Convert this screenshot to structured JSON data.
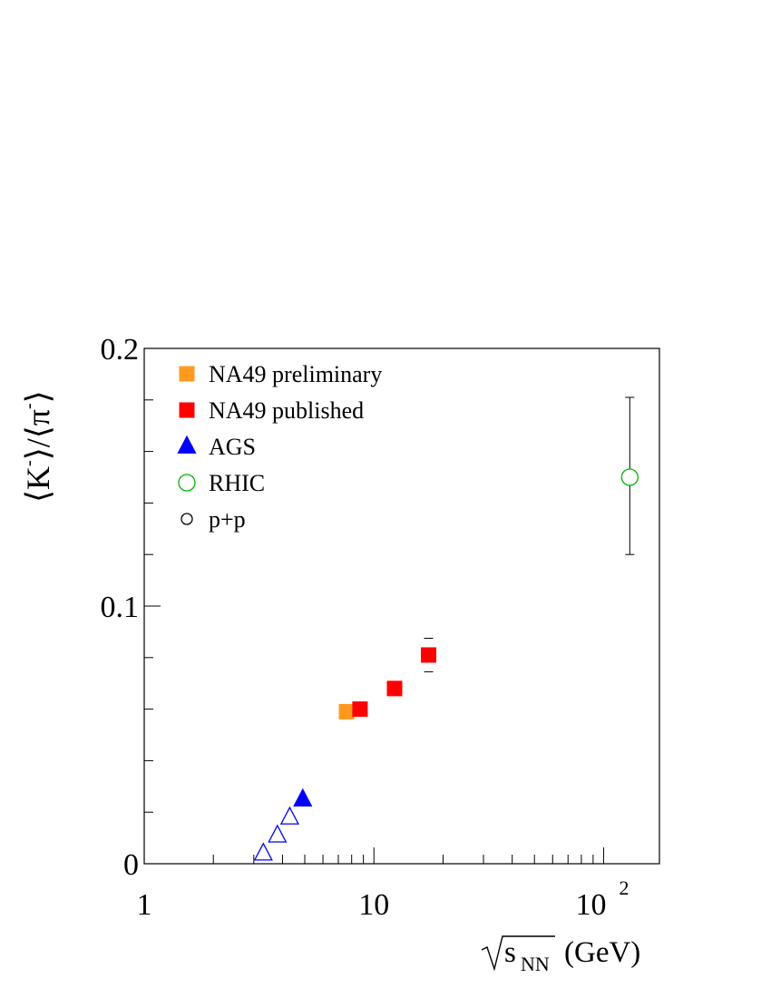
{
  "chart_data": {
    "type": "scatter",
    "x_scale": "log",
    "xlim": [
      1,
      175
    ],
    "ylim": [
      0,
      0.2
    ],
    "grid": false,
    "legend_position": "top-left",
    "x_tick_labels": [
      {
        "value": 1,
        "base": "1",
        "exp": ""
      },
      {
        "value": 10,
        "base": "10",
        "exp": ""
      },
      {
        "value": 100,
        "base": "10",
        "exp": "2"
      }
    ],
    "y_tick_labels": [
      {
        "value": 0,
        "label": "0"
      },
      {
        "value": 0.1,
        "label": "0.1"
      },
      {
        "value": 0.2,
        "label": "0.2"
      }
    ],
    "xlabel": {
      "sub": "NN",
      "unit": "(GeV)"
    },
    "ylabel": {
      "k": "K",
      "pi": "π",
      "charge": "-"
    },
    "legend": [
      {
        "label": "NA49 preliminary",
        "marker": "square-filled",
        "color": "#ff9a1f"
      },
      {
        "label": "NA49 published",
        "marker": "square-filled",
        "color": "#ff0000"
      },
      {
        "label": "AGS",
        "marker": "triangle-filled",
        "color": "#0000ff"
      },
      {
        "label": "RHIC",
        "marker": "circle-open",
        "color": "#00b400"
      },
      {
        "label": "p+p",
        "marker": "circle-open",
        "color": "#000000"
      }
    ],
    "series": [
      {
        "name": "NA49 preliminary",
        "marker": "square-filled",
        "color": "#ff9a1f",
        "points": [
          {
            "x": 7.6,
            "y": 0.059
          }
        ]
      },
      {
        "name": "NA49 published",
        "marker": "square-filled",
        "color": "#ff0000",
        "points": [
          {
            "x": 8.7,
            "y": 0.06
          },
          {
            "x": 12.3,
            "y": 0.068
          },
          {
            "x": 17.3,
            "y": 0.081,
            "err_lo": 0.0745,
            "err_hi": 0.0875
          }
        ]
      },
      {
        "name": "AGS",
        "marker": "triangle-filled",
        "color": "#0000ff",
        "points": [
          {
            "x": 4.9,
            "y": 0.025
          }
        ]
      },
      {
        "name": "AGS",
        "marker": "triangle-open",
        "color": "#0000ff",
        "points": [
          {
            "x": 3.3,
            "y": 0.004
          },
          {
            "x": 3.8,
            "y": 0.011
          },
          {
            "x": 4.3,
            "y": 0.018
          }
        ]
      },
      {
        "name": "RHIC",
        "marker": "circle-open",
        "color": "#00b400",
        "points": [
          {
            "x": 130,
            "y": 0.15,
            "err_lo": 0.12,
            "err_hi": 0.181
          }
        ]
      }
    ]
  }
}
